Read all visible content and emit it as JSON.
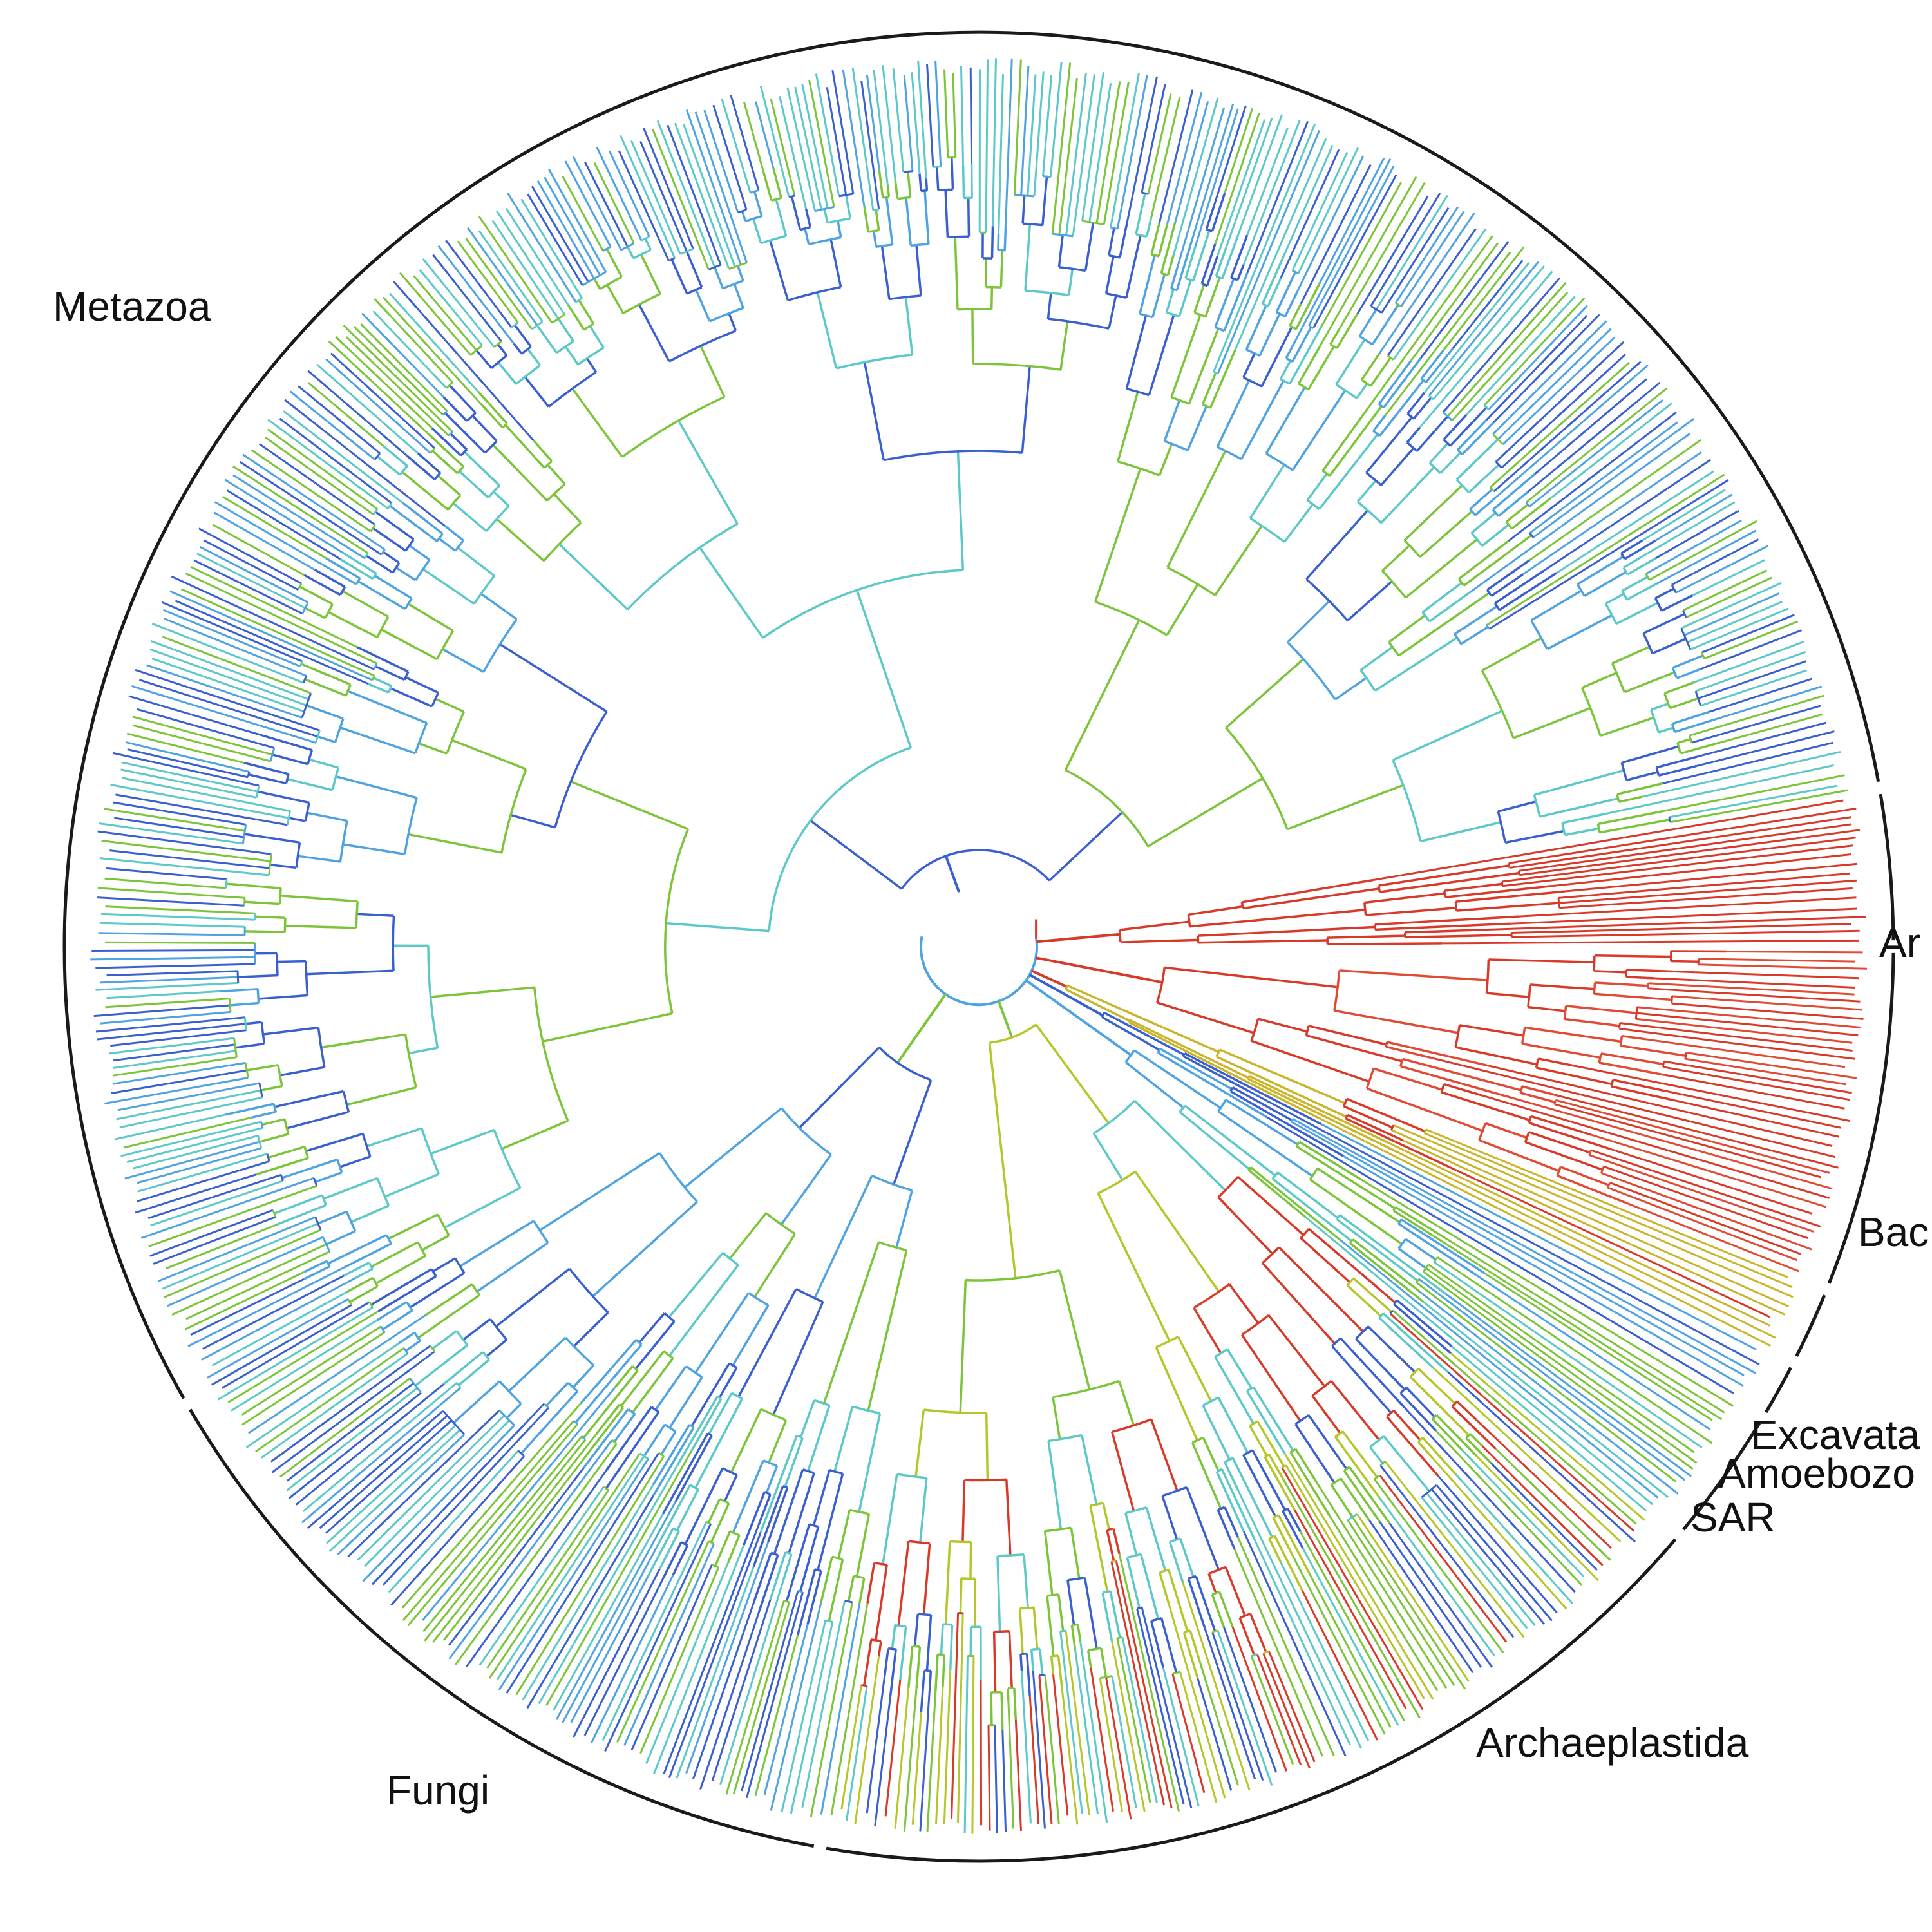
{
  "figure": {
    "type": "circular-phylogenetic-tree",
    "colors": {
      "eukaryote_blue": "#3a5fcf",
      "light_blue": "#4fa3e0",
      "cyan": "#5cc8c8",
      "green": "#7cc43a",
      "yellow_green": "#b5c62a",
      "red": "#d83a2a",
      "band": "#1a1a1a"
    },
    "clades": [
      {
        "id": "metazoa",
        "label": "Metazoa",
        "start_deg": 150,
        "end_deg": 350,
        "palette": [
          "#3a5fcf",
          "#4fa3e0",
          "#5cc8c8",
          "#7cc43a"
        ]
      },
      {
        "id": "archaea",
        "label": "Ar",
        "start_deg": 350,
        "end_deg": 360,
        "palette": [
          "#d83a2a"
        ]
      },
      {
        "id": "bacteria",
        "label": "Bac",
        "start_deg": 0,
        "end_deg": 22,
        "palette": [
          "#d83a2a",
          "#e04b35"
        ]
      },
      {
        "id": "excavata",
        "label": "Excavata",
        "start_deg": 22,
        "end_deg": 27,
        "palette": [
          "#d83a2a",
          "#c9b52a"
        ]
      },
      {
        "id": "amoebozoa",
        "label": "Amoebozo",
        "start_deg": 27,
        "end_deg": 31,
        "palette": [
          "#3a5fcf",
          "#4fa3e0"
        ]
      },
      {
        "id": "sar",
        "label": "SAR",
        "start_deg": 31,
        "end_deg": 40,
        "palette": [
          "#4fa3e0",
          "#7cc43a",
          "#5cc8c8"
        ]
      },
      {
        "id": "archaeplastida",
        "label": "Archaeplastida",
        "start_deg": 40,
        "end_deg": 100,
        "palette": [
          "#7cc43a",
          "#5cc8c8",
          "#b5c62a",
          "#d83a2a",
          "#3a5fcf"
        ]
      },
      {
        "id": "fungi",
        "label": "Fungi",
        "start_deg": 100,
        "end_deg": 150,
        "palette": [
          "#7cc43a",
          "#3a5fcf",
          "#5cc8c8",
          "#4fa3e0"
        ]
      }
    ]
  }
}
